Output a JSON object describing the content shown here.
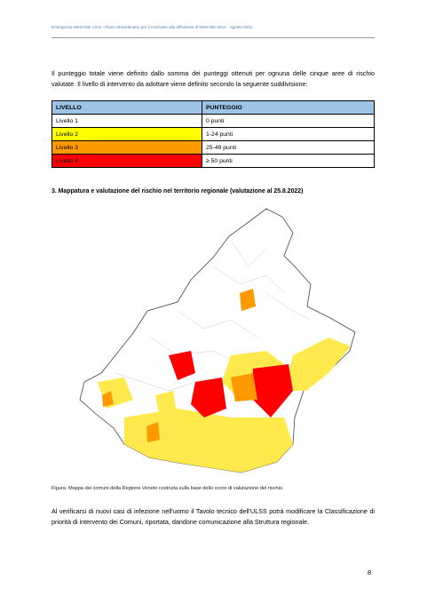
{
  "header": {
    "title": "Emergenza West Nile Virus - Piano Straordinario per il contrasto alla diffusione di West Nile virus - Agosto 2022"
  },
  "intro": "Il punteggio totale viene definito dallo somma dei punteggi ottenuti per ognuna delle cinque aree di rischio valutate. Il livello di intervento da adottare viene definito secondo la seguente suddivisione:",
  "table": {
    "columns": [
      "LIVELLO",
      "PUNTEGGIO"
    ],
    "rows": [
      [
        "Livello 1",
        "0 punti"
      ],
      [
        "Livello 2",
        "1-24 punti"
      ],
      [
        "Livello 3",
        "25-49 punti"
      ],
      [
        "Livello 4",
        "≥ 50 punti"
      ]
    ],
    "row_colors": [
      "#ffffff",
      "#ffff00",
      "#ff9900",
      "#ff0000"
    ]
  },
  "section": {
    "title": "3. Mappatura e valutazione del rischio nel territorio regionale (valutazione al 25.8.2022)"
  },
  "figure": {
    "caption": "Figura. Mappa dei comuni della Regione Veneto costruita sulla base dello score di valutazione del rischio."
  },
  "closing": "Al verificarsi di nuovi casi di infezione nell'uomo il Tavolo tecnico dell'ULSS potrà modificare la Classificazione di priorità di intervento dei Comuni, riportata, dandone comunicazione alla Struttura regionale.",
  "page_number": "8"
}
